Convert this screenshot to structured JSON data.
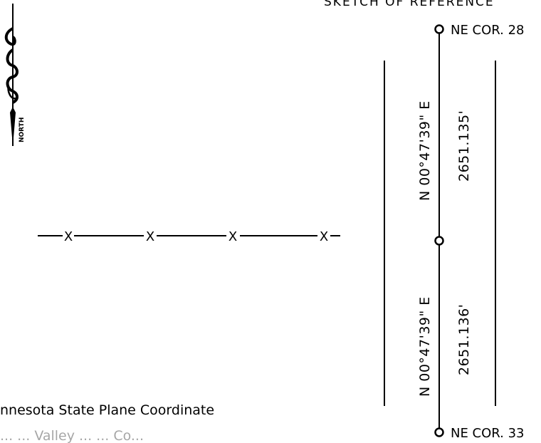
{
  "header": {
    "title": "SKETCH OF REFERENCE"
  },
  "north_arrow": {
    "label": "NORTH"
  },
  "fence": {
    "marker": "X",
    "count": 4
  },
  "corners": {
    "top": "NE COR. 28",
    "bottom": "NE COR. 33"
  },
  "segments": [
    {
      "bearing": "N 00°47'39\" E",
      "distance": "2651.135'"
    },
    {
      "bearing": "N 00°47'39\" E",
      "distance": "2651.136'"
    }
  ],
  "notes": {
    "line1": "nnesota  State  Plane  Coordinate",
    "line2": "...  ...  Valley  ...  ...  Co..."
  }
}
